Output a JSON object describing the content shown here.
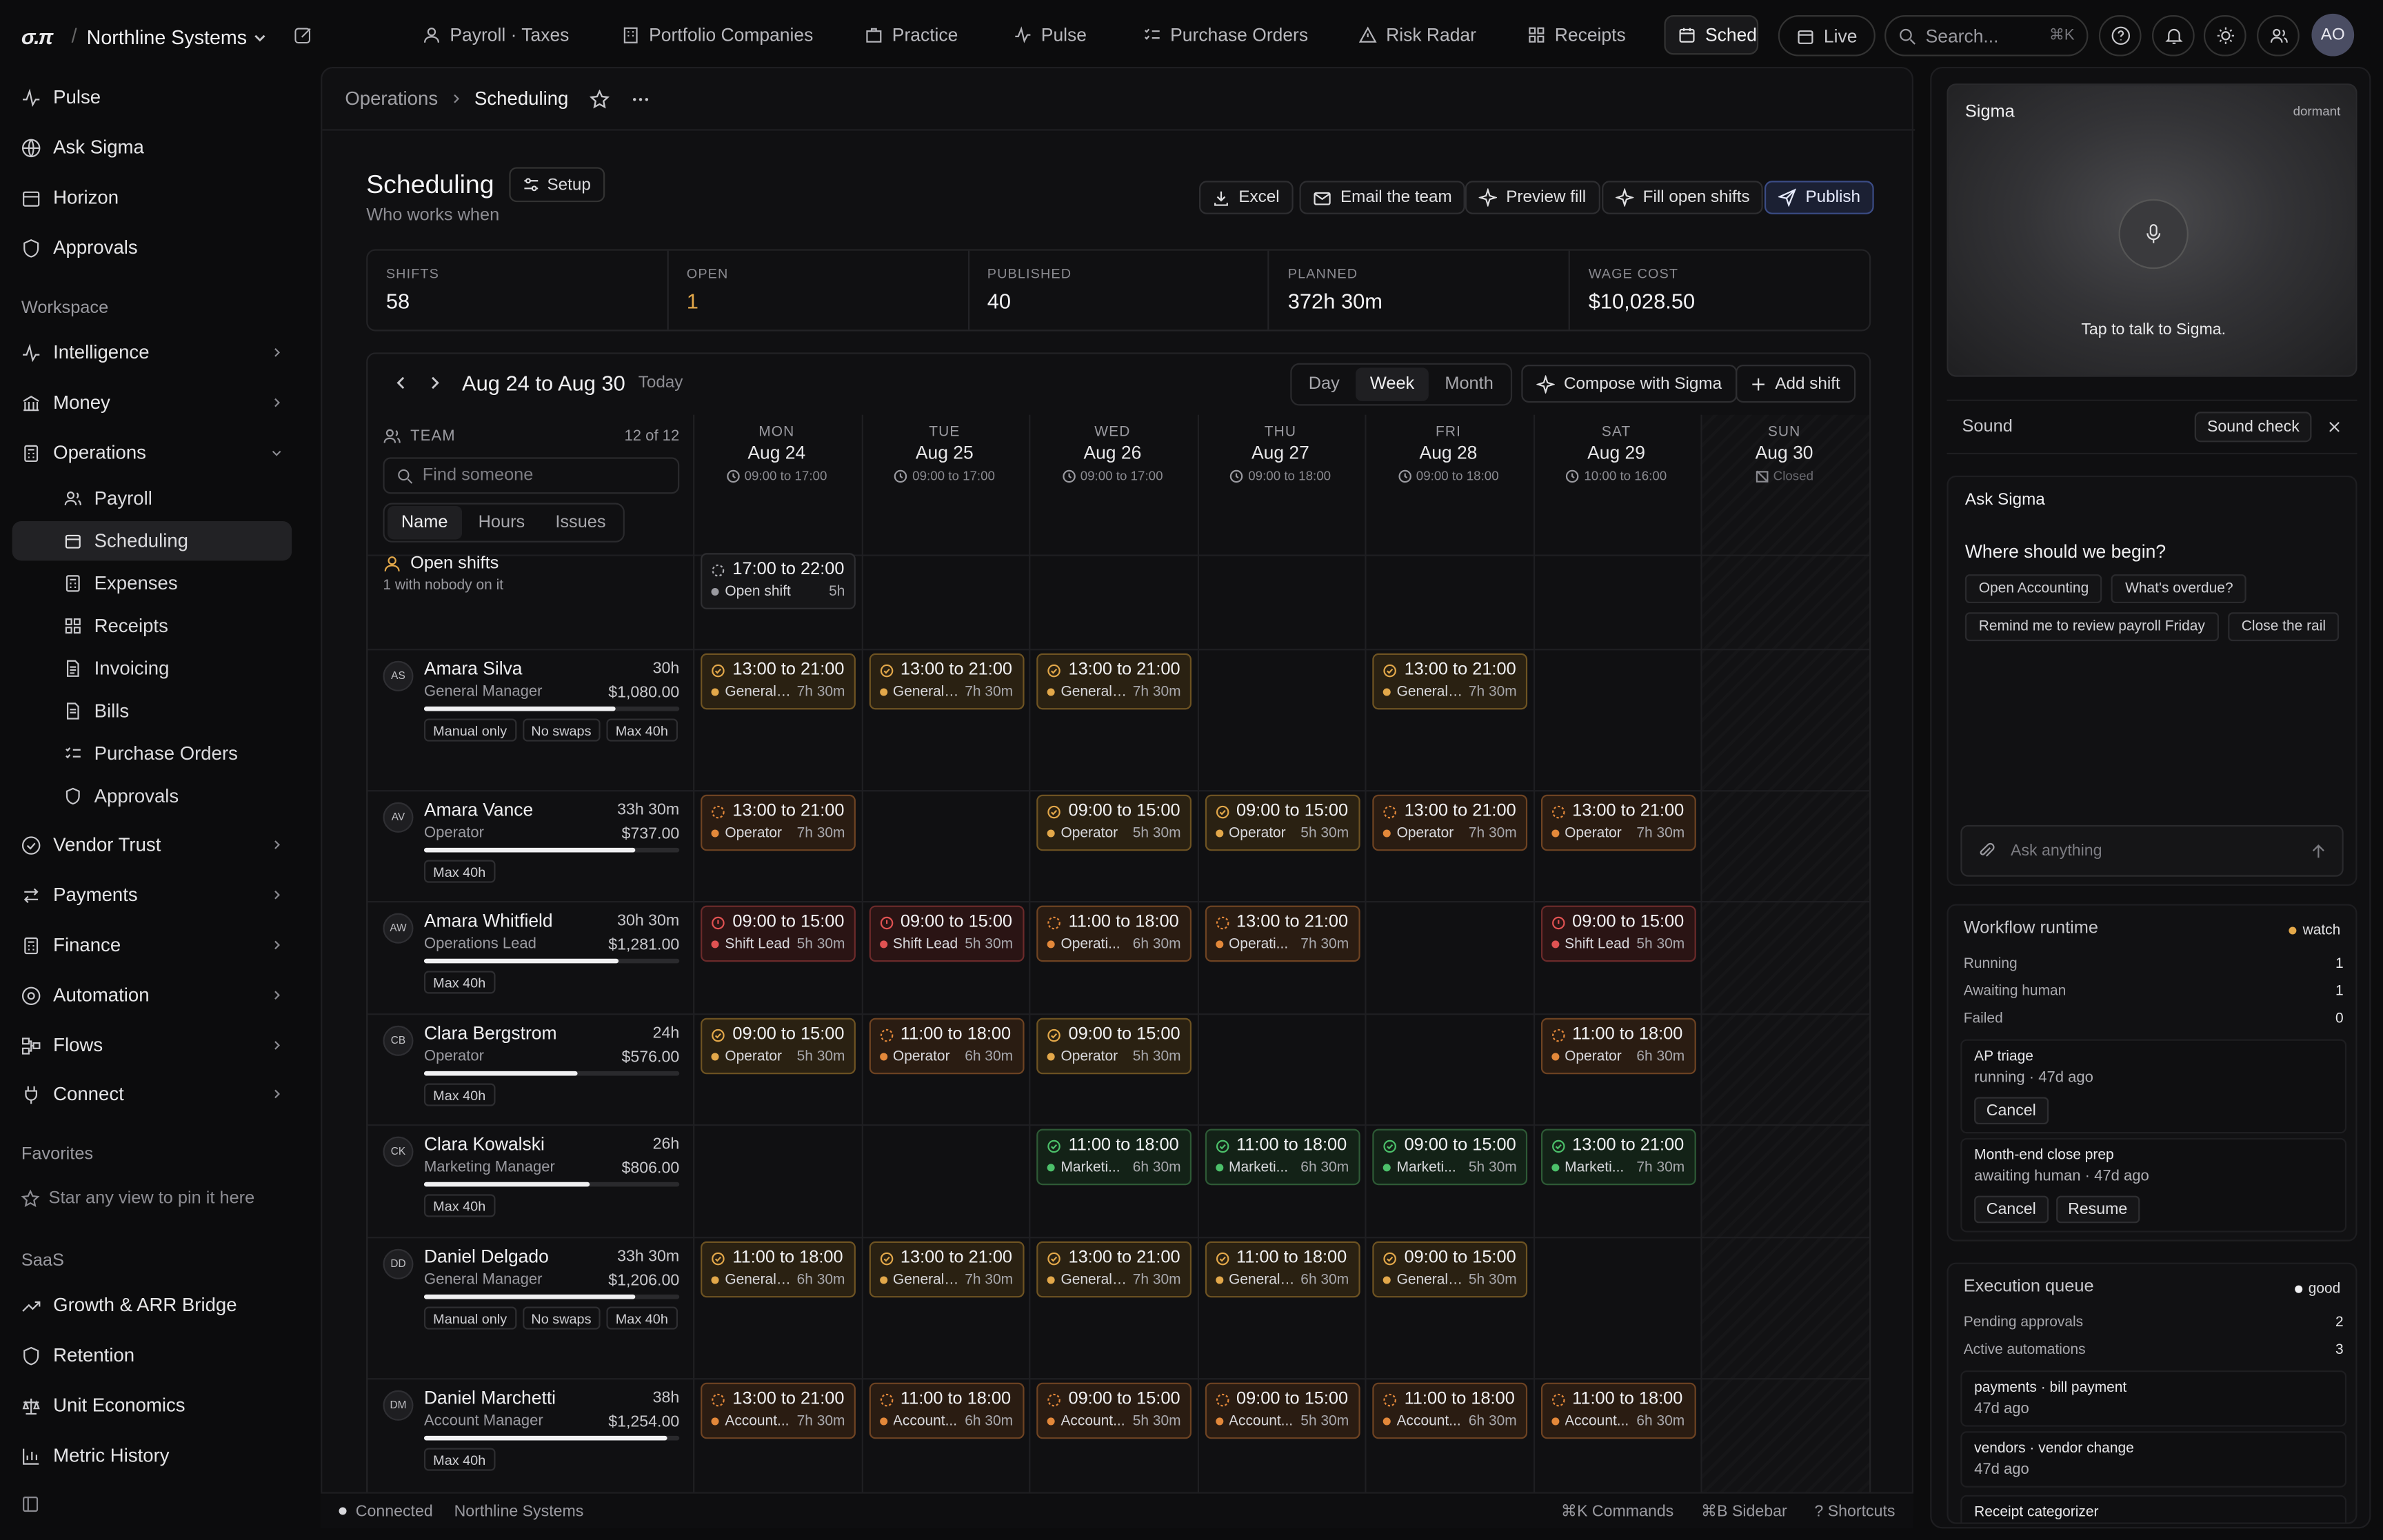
{
  "app": {
    "logo": "σ.π",
    "org": "Northline Systems"
  },
  "topnav": {
    "tabs": [
      {
        "label": "Payroll · Taxes",
        "icon": "users-icon"
      },
      {
        "label": "Portfolio Companies",
        "icon": "building-icon"
      },
      {
        "label": "Practice",
        "icon": "briefcase-icon"
      },
      {
        "label": "Pulse",
        "icon": "pulse-icon"
      },
      {
        "label": "Purchase Orders",
        "icon": "checklist-icon"
      },
      {
        "label": "Risk Radar",
        "icon": "warning-icon"
      },
      {
        "label": "Receipts",
        "icon": "grid-icon"
      },
      {
        "label": "Sched",
        "icon": "calendar-icon"
      }
    ],
    "live_label": "Live",
    "search_placeholder": "Search...",
    "search_kbd": "⌘K",
    "avatar": "AO"
  },
  "sidebar": {
    "top": [
      {
        "label": "Pulse",
        "icon": "pulse-icon"
      },
      {
        "label": "Ask Sigma",
        "icon": "globe-icon"
      },
      {
        "label": "Horizon",
        "icon": "calendar-icon"
      },
      {
        "label": "Approvals",
        "icon": "shield-icon"
      }
    ],
    "workspace_label": "Workspace",
    "workspace": [
      {
        "label": "Intelligence",
        "icon": "pulse-icon"
      },
      {
        "label": "Money",
        "icon": "bank-icon"
      },
      {
        "label": "Operations",
        "icon": "calculator-icon"
      }
    ],
    "operations_sub": [
      {
        "label": "Payroll",
        "icon": "users-icon"
      },
      {
        "label": "Scheduling",
        "icon": "calendar-icon"
      },
      {
        "label": "Expenses",
        "icon": "calculator-icon"
      },
      {
        "label": "Receipts",
        "icon": "grid-icon"
      },
      {
        "label": "Invoicing",
        "icon": "file-icon"
      },
      {
        "label": "Bills",
        "icon": "file-icon"
      },
      {
        "label": "Purchase Orders",
        "icon": "checklist-icon"
      },
      {
        "label": "Approvals",
        "icon": "shield-icon"
      }
    ],
    "workspace_more": [
      {
        "label": "Vendor Trust",
        "icon": "shield-check-icon"
      },
      {
        "label": "Payments",
        "icon": "arrows-icon"
      },
      {
        "label": "Finance",
        "icon": "calculator-icon"
      },
      {
        "label": "Automation",
        "icon": "globe-icon"
      },
      {
        "label": "Flows",
        "icon": "flow-icon"
      },
      {
        "label": "Connect",
        "icon": "plug-icon"
      }
    ],
    "favorites_label": "Favorites",
    "favorites_empty": "Star any view to pin it here",
    "saas_label": "SaaS",
    "saas": [
      {
        "label": "Growth & ARR Bridge",
        "icon": "trend-icon"
      },
      {
        "label": "Retention",
        "icon": "shield-icon"
      },
      {
        "label": "Unit Economics",
        "icon": "scale-icon"
      },
      {
        "label": "Metric History",
        "icon": "bar-chart-icon"
      }
    ]
  },
  "breadcrumb": {
    "parent": "Operations",
    "current": "Scheduling"
  },
  "page": {
    "title": "Scheduling",
    "setup_label": "Setup",
    "subtitle": "Who works when",
    "actions": [
      "Excel",
      "Email the team",
      "Preview fill",
      "Fill open shifts",
      "Publish"
    ]
  },
  "stats": [
    {
      "label": "SHIFTS",
      "value": "58"
    },
    {
      "label": "OPEN",
      "value": "1"
    },
    {
      "label": "PUBLISHED",
      "value": "40"
    },
    {
      "label": "PLANNED",
      "value": "372h 30m"
    },
    {
      "label": "WAGE COST",
      "value": "$10,028.50"
    }
  ],
  "schedule": {
    "week_label": "Aug 24 to Aug 30",
    "today_label": "Today",
    "views": [
      "Day",
      "Week",
      "Month"
    ],
    "active_view": "Week",
    "compose_label": "Compose with Sigma",
    "add_shift_label": "Add shift",
    "team_label": "TEAM",
    "team_count": "12 of 12",
    "find_placeholder": "Find someone",
    "sort_tabs": [
      "Name",
      "Hours",
      "Issues"
    ],
    "days": [
      {
        "dow": "MON",
        "date": "Aug 24",
        "hours": "09:00 to 17:00"
      },
      {
        "dow": "TUE",
        "date": "Aug 25",
        "hours": "09:00 to 17:00"
      },
      {
        "dow": "WED",
        "date": "Aug 26",
        "hours": "09:00 to 17:00"
      },
      {
        "dow": "THU",
        "date": "Aug 27",
        "hours": "09:00 to 18:00"
      },
      {
        "dow": "FRI",
        "date": "Aug 28",
        "hours": "09:00 to 18:00"
      },
      {
        "dow": "SAT",
        "date": "Aug 29",
        "hours": "10:00 to 16:00"
      },
      {
        "dow": "SUN",
        "date": "Aug 30",
        "hours": "Closed"
      }
    ],
    "open_shifts": {
      "title": "Open shifts",
      "subtitle": "1 with nobody on it",
      "shift": {
        "time": "17:00 to 22:00",
        "role": "Open shift",
        "dur": "5h"
      }
    },
    "people": [
      {
        "initials": "AS",
        "name": "Amara Silva",
        "role": "General Manager",
        "hours": "30h",
        "wage": "$1,080.00",
        "load": 0.75,
        "tags": [
          "Manual only",
          "No swaps",
          "Max 40h"
        ],
        "shifts": [
          {
            "day": 0,
            "time": "13:00 to 21:00",
            "role": "General ...",
            "dur": "7h 30m",
            "st": "amber"
          },
          {
            "day": 1,
            "time": "13:00 to 21:00",
            "role": "General ...",
            "dur": "7h 30m",
            "st": "amber"
          },
          {
            "day": 2,
            "time": "13:00 to 21:00",
            "role": "General ...",
            "dur": "7h 30m",
            "st": "amber"
          },
          {
            "day": 4,
            "time": "13:00 to 21:00",
            "role": "General ...",
            "dur": "7h 30m",
            "st": "amber"
          }
        ]
      },
      {
        "initials": "AV",
        "name": "Amara Vance",
        "role": "Operator",
        "hours": "33h 30m",
        "wage": "$737.00",
        "load": 0.83,
        "tags": [
          "Max 40h"
        ],
        "shifts": [
          {
            "day": 0,
            "time": "13:00 to 21:00",
            "role": "Operator",
            "dur": "7h 30m",
            "st": "orange"
          },
          {
            "day": 2,
            "time": "09:00 to 15:00",
            "role": "Operator",
            "dur": "5h 30m",
            "st": "amber"
          },
          {
            "day": 3,
            "time": "09:00 to 15:00",
            "role": "Operator",
            "dur": "5h 30m",
            "st": "amber"
          },
          {
            "day": 4,
            "time": "13:00 to 21:00",
            "role": "Operator",
            "dur": "7h 30m",
            "st": "orange"
          },
          {
            "day": 5,
            "time": "13:00 to 21:00",
            "role": "Operator",
            "dur": "7h 30m",
            "st": "orange"
          }
        ]
      },
      {
        "initials": "AW",
        "name": "Amara Whitfield",
        "role": "Operations Lead",
        "hours": "30h 30m",
        "wage": "$1,281.00",
        "load": 0.76,
        "tags": [
          "Max 40h"
        ],
        "shifts": [
          {
            "day": 0,
            "time": "09:00 to 15:00",
            "role": "Shift Lead",
            "dur": "5h 30m",
            "st": "red"
          },
          {
            "day": 1,
            "time": "09:00 to 15:00",
            "role": "Shift Lead",
            "dur": "5h 30m",
            "st": "red"
          },
          {
            "day": 2,
            "time": "11:00 to 18:00",
            "role": "Operati...",
            "dur": "6h 30m",
            "st": "orange"
          },
          {
            "day": 3,
            "time": "13:00 to 21:00",
            "role": "Operati...",
            "dur": "7h 30m",
            "st": "orange"
          },
          {
            "day": 5,
            "time": "09:00 to 15:00",
            "role": "Shift Lead",
            "dur": "5h 30m",
            "st": "red"
          }
        ]
      },
      {
        "initials": "CB",
        "name": "Clara Bergstrom",
        "role": "Operator",
        "hours": "24h",
        "wage": "$576.00",
        "load": 0.6,
        "tags": [
          "Max 40h"
        ],
        "shifts": [
          {
            "day": 0,
            "time": "09:00 to 15:00",
            "role": "Operator",
            "dur": "5h 30m",
            "st": "amber"
          },
          {
            "day": 1,
            "time": "11:00 to 18:00",
            "role": "Operator",
            "dur": "6h 30m",
            "st": "orange"
          },
          {
            "day": 2,
            "time": "09:00 to 15:00",
            "role": "Operator",
            "dur": "5h 30m",
            "st": "amber"
          },
          {
            "day": 5,
            "time": "11:00 to 18:00",
            "role": "Operator",
            "dur": "6h 30m",
            "st": "orange"
          }
        ]
      },
      {
        "initials": "CK",
        "name": "Clara Kowalski",
        "role": "Marketing Manager",
        "hours": "26h",
        "wage": "$806.00",
        "load": 0.65,
        "tags": [
          "Max 40h"
        ],
        "shifts": [
          {
            "day": 2,
            "time": "11:00 to 18:00",
            "role": "Marketi...",
            "dur": "6h 30m",
            "st": "green"
          },
          {
            "day": 3,
            "time": "11:00 to 18:00",
            "role": "Marketi...",
            "dur": "6h 30m",
            "st": "green"
          },
          {
            "day": 4,
            "time": "09:00 to 15:00",
            "role": "Marketi...",
            "dur": "5h 30m",
            "st": "green"
          },
          {
            "day": 5,
            "time": "13:00 to 21:00",
            "role": "Marketi...",
            "dur": "7h 30m",
            "st": "green"
          }
        ]
      },
      {
        "initials": "DD",
        "name": "Daniel Delgado",
        "role": "General Manager",
        "hours": "33h 30m",
        "wage": "$1,206.00",
        "load": 0.83,
        "tags": [
          "Manual only",
          "No swaps",
          "Max 40h"
        ],
        "shifts": [
          {
            "day": 0,
            "time": "11:00 to 18:00",
            "role": "General ...",
            "dur": "6h 30m",
            "st": "amber"
          },
          {
            "day": 1,
            "time": "13:00 to 21:00",
            "role": "General ...",
            "dur": "7h 30m",
            "st": "amber"
          },
          {
            "day": 2,
            "time": "13:00 to 21:00",
            "role": "General ...",
            "dur": "7h 30m",
            "st": "amber"
          },
          {
            "day": 3,
            "time": "11:00 to 18:00",
            "role": "General ...",
            "dur": "6h 30m",
            "st": "amber"
          },
          {
            "day": 4,
            "time": "09:00 to 15:00",
            "role": "General ...",
            "dur": "5h 30m",
            "st": "amber"
          }
        ]
      },
      {
        "initials": "DM",
        "name": "Daniel Marchetti",
        "role": "Account Manager",
        "hours": "38h",
        "wage": "$1,254.00",
        "load": 0.95,
        "tags": [
          "Max 40h"
        ],
        "shifts": [
          {
            "day": 0,
            "time": "13:00 to 21:00",
            "role": "Account...",
            "dur": "7h 30m",
            "st": "orange"
          },
          {
            "day": 1,
            "time": "11:00 to 18:00",
            "role": "Account...",
            "dur": "6h 30m",
            "st": "orange"
          },
          {
            "day": 2,
            "time": "09:00 to 15:00",
            "role": "Account...",
            "dur": "5h 30m",
            "st": "orange"
          },
          {
            "day": 3,
            "time": "09:00 to 15:00",
            "role": "Account...",
            "dur": "5h 30m",
            "st": "orange"
          },
          {
            "day": 4,
            "time": "11:00 to 18:00",
            "role": "Account...",
            "dur": "6h 30m",
            "st": "orange"
          },
          {
            "day": 5,
            "time": "11:00 to 18:00",
            "role": "Account...",
            "dur": "6h 30m",
            "st": "orange"
          }
        ]
      }
    ]
  },
  "footer": {
    "status": "Connected",
    "org": "Northline Systems",
    "commands": "⌘K Commands",
    "sidebar": "⌘B Sidebar",
    "shortcuts": "? Shortcuts"
  },
  "sigma": {
    "title": "Sigma",
    "state": "dormant",
    "hint": "Tap to talk to Sigma."
  },
  "sound": {
    "label": "Sound",
    "check_label": "Sound check"
  },
  "ask": {
    "title": "Ask Sigma",
    "question": "Where should we begin?",
    "chips": [
      "Open Accounting",
      "What's overdue?",
      "Remind me to review payroll Friday",
      "Close the rail"
    ],
    "placeholder": "Ask anything"
  },
  "workflow": {
    "title": "Workflow runtime",
    "badge": "watch",
    "rows": [
      {
        "k": "Running",
        "v": "1"
      },
      {
        "k": "Awaiting human",
        "v": "1"
      },
      {
        "k": "Failed",
        "v": "0"
      }
    ],
    "jobs": [
      {
        "name": "AP triage",
        "status": "running · 47d ago",
        "buttons": [
          "Cancel"
        ]
      },
      {
        "name": "Month-end close prep",
        "status": "awaiting human · 47d ago",
        "buttons": [
          "Cancel",
          "Resume"
        ]
      }
    ]
  },
  "queue": {
    "title": "Execution queue",
    "badge": "good",
    "rows": [
      {
        "k": "Pending approvals",
        "v": "2"
      },
      {
        "k": "Active automations",
        "v": "3"
      }
    ],
    "items": [
      {
        "name": "payments · bill payment",
        "status": "47d ago"
      },
      {
        "name": "vendors · vendor change",
        "status": "47d ago"
      },
      {
        "name": "Receipt categorizer",
        "status": ""
      }
    ]
  },
  "colors": {
    "accent": "#3b4c86",
    "open_warn": "#e3a84a",
    "watch": "#e3a84a",
    "good": "#f0f0f2"
  }
}
